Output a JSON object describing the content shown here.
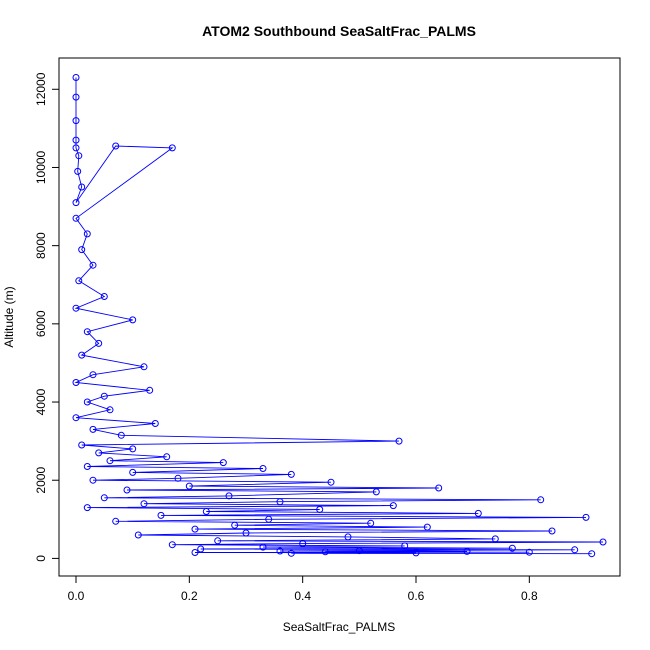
{
  "chart_data": {
    "type": "line",
    "title": "ATOM2 Southbound SeaSaltFrac_PALMS",
    "xlabel": "SeaSaltFrac_PALMS",
    "ylabel": "Altitude (m)",
    "xlim": [
      -0.03,
      0.96
    ],
    "ylim": [
      -450,
      12800
    ],
    "xticks": [
      0.0,
      0.2,
      0.4,
      0.6,
      0.8
    ],
    "xtick_labels": [
      "0.0",
      "0.2",
      "0.4",
      "0.6",
      "0.8"
    ],
    "yticks": [
      0,
      2000,
      4000,
      6000,
      8000,
      10000,
      12000
    ],
    "ytick_labels": [
      "0",
      "2000",
      "4000",
      "6000",
      "8000",
      "10000",
      "12000"
    ],
    "grid": false,
    "series": [
      {
        "color": "#0000ff",
        "marker": "open-circle",
        "x": [
          0.0,
          0.0,
          0.0,
          0.0,
          0.0,
          0.005,
          0.003,
          0.01,
          0.0,
          0.07,
          0.17,
          0.0,
          0.02,
          0.01,
          0.03,
          0.005,
          0.05,
          0.0,
          0.1,
          0.02,
          0.04,
          0.01,
          0.12,
          0.03,
          0.0,
          0.13,
          0.05,
          0.02,
          0.06,
          0.0,
          0.14,
          0.03,
          0.08,
          0.57,
          0.01,
          0.1,
          0.04,
          0.16,
          0.06,
          0.26,
          0.02,
          0.33,
          0.1,
          0.38,
          0.18,
          0.03,
          0.45,
          0.2,
          0.64,
          0.09,
          0.53,
          0.27,
          0.05,
          0.82,
          0.36,
          0.12,
          0.56,
          0.02,
          0.43,
          0.23,
          0.71,
          0.15,
          0.9,
          0.34,
          0.07,
          0.52,
          0.28,
          0.62,
          0.21,
          0.84,
          0.3,
          0.11,
          0.48,
          0.74,
          0.25,
          0.93,
          0.4,
          0.17,
          0.58,
          0.33,
          0.77,
          0.22,
          0.88,
          0.5,
          0.36,
          0.69,
          0.44,
          0.8,
          0.21,
          0.6,
          0.38,
          0.91
        ],
        "y": [
          12300,
          11800,
          11200,
          10700,
          10500,
          10300,
          9900,
          9500,
          9100,
          10550,
          10500,
          8700,
          8300,
          7900,
          7500,
          7100,
          6700,
          6400,
          6100,
          5800,
          5500,
          5200,
          4900,
          4700,
          4500,
          4300,
          4150,
          4000,
          3800,
          3600,
          3450,
          3300,
          3150,
          3000,
          2900,
          2800,
          2700,
          2600,
          2500,
          2450,
          2350,
          2300,
          2200,
          2150,
          2050,
          2000,
          1950,
          1850,
          1800,
          1750,
          1700,
          1600,
          1550,
          1500,
          1450,
          1400,
          1350,
          1300,
          1250,
          1200,
          1150,
          1100,
          1050,
          1000,
          950,
          900,
          850,
          800,
          750,
          700,
          650,
          600,
          550,
          500,
          450,
          420,
          380,
          350,
          320,
          290,
          260,
          240,
          220,
          200,
          190,
          180,
          170,
          160,
          150,
          140,
          130,
          120
        ]
      }
    ]
  }
}
